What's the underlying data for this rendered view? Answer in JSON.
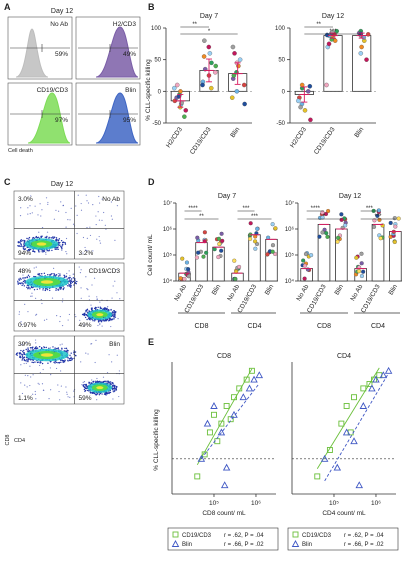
{
  "colors": {
    "panel_bg": "#ffffff",
    "violet": "#7b5ea7",
    "blue": "#3f66c4",
    "green": "#7ddc56",
    "grey_hist": "#bdbdbd",
    "bar_edge": "#333333",
    "sig": "#222222",
    "dot_palette": [
      "#e6c229",
      "#6cb3e6",
      "#d64541",
      "#7b5ea7",
      "#2ca05a",
      "#f08a24",
      "#9ad0f5",
      "#c2185b",
      "#a0a0a0",
      "#1f4e9c",
      "#f2a7c0",
      "#4caf50",
      "#ffde59"
    ],
    "pink_mean": "#d81b60",
    "scatter_green": "#6abf3a",
    "scatter_blue": "#3f57c4"
  },
  "panels": {
    "a": {
      "label": "A",
      "title": "Day 12",
      "xlabel": "Cell death",
      "cells": [
        {
          "name": "No Ab",
          "pct": "59%",
          "color": "grey"
        },
        {
          "name": "H2/CD3",
          "pct": "49%",
          "color": "violet"
        },
        {
          "name": "CD19/CD3",
          "pct": "97%",
          "color": "green"
        },
        {
          "name": "Blin",
          "pct": "95%",
          "color": "blue"
        }
      ]
    },
    "b": {
      "label": "B",
      "ylabel": "% CLL-specific killing"
    },
    "c": {
      "label": "C",
      "title": "Day 12",
      "ylabel": "CD8",
      "xlabel": "CD4",
      "plots": [
        {
          "name": "No Ab",
          "tl": "3.0%",
          "bl": "94%",
          "br": "3.2%"
        },
        {
          "name": "CD19/CD3",
          "tl": "48%",
          "bl": "0.97%",
          "br": "49%"
        },
        {
          "name": "Blin",
          "tl": "39%",
          "bl": "1.1%",
          "br": "59%"
        }
      ]
    },
    "d": {
      "label": "D",
      "ylabel": "Cell count/ mL",
      "group_labels": [
        "CD8",
        "CD4",
        "CD8",
        "CD4"
      ]
    },
    "e": {
      "label": "E",
      "ylabel": "% CLL-specific killing",
      "legend": [
        {
          "name": "CD19/CD3",
          "stat": "r = .62, P = .04"
        },
        {
          "name": "Blin",
          "stat": "r = .66, P = .02"
        }
      ]
    }
  },
  "chart_data": [
    {
      "type": "bar",
      "panel": "B1",
      "title": "Day 7",
      "categories": [
        "H2/CD3",
        "CD19/CD3",
        "Blin"
      ],
      "values": [
        -15,
        33,
        28
      ],
      "errors": [
        10,
        18,
        17
      ],
      "ylim": [
        -50,
        100
      ],
      "yticks": [
        -50,
        0,
        50,
        100
      ],
      "points": [
        [
          -25,
          -20,
          -15,
          -10,
          -5,
          0,
          5,
          -30,
          -18,
          -8,
          10,
          -40
        ],
        [
          5,
          15,
          25,
          35,
          45,
          55,
          60,
          70,
          80,
          10,
          30,
          40
        ],
        [
          -10,
          0,
          10,
          20,
          30,
          40,
          50,
          60,
          70,
          -20,
          45,
          25
        ]
      ],
      "significance": [
        {
          "pair": [
            0,
            1
          ],
          "label": "**"
        },
        {
          "pair": [
            0,
            2
          ],
          "label": "*"
        }
      ]
    },
    {
      "type": "bar",
      "panel": "B2",
      "title": "Day 12",
      "categories": [
        "H2/CD3",
        "CD19/CD3",
        "Blin"
      ],
      "values": [
        -5,
        88,
        88
      ],
      "errors": [
        12,
        4,
        4
      ],
      "ylim": [
        -50,
        100
      ],
      "yticks": [
        -50,
        0,
        50,
        100
      ],
      "points": [
        [
          -30,
          -20,
          -10,
          0,
          5,
          10,
          -15,
          -45,
          -25,
          8
        ],
        [
          85,
          88,
          90,
          92,
          95,
          80,
          70,
          75,
          93,
          89,
          10,
          82
        ],
        [
          80,
          85,
          90,
          92,
          95,
          70,
          60,
          50,
          88,
          91
        ]
      ],
      "significance": [
        {
          "pair": [
            0,
            1
          ],
          "label": "**"
        },
        {
          "pair": [
            0,
            2
          ],
          "label": "***"
        }
      ]
    },
    {
      "type": "bar",
      "panel": "D1",
      "title": "Day 7",
      "log": true,
      "categories": [
        "No Ab",
        "CD19/CD3",
        "Blin",
        "No Ab",
        "CD19/CD3",
        "Blin"
      ],
      "values": [
        20000,
        300000,
        200000,
        20000,
        600000,
        400000
      ],
      "ylim": [
        10000,
        10000000
      ],
      "ytick_labels": [
        "10⁴",
        "10⁵",
        "10⁶",
        "10⁷"
      ],
      "significance": [
        {
          "pair": [
            0,
            1
          ],
          "label": "****"
        },
        {
          "pair": [
            0,
            2
          ],
          "label": "**"
        },
        {
          "pair": [
            3,
            4
          ],
          "label": "***"
        },
        {
          "pair": [
            3,
            5
          ],
          "label": "***"
        }
      ]
    },
    {
      "type": "bar",
      "panel": "D2",
      "title": "Day 12",
      "log": true,
      "categories": [
        "No Ab",
        "CD19/CD3",
        "Blin",
        "No Ab",
        "CD19/CD3",
        "Blin"
      ],
      "values": [
        30000,
        1500000,
        1000000,
        30000,
        1500000,
        800000
      ],
      "ylim": [
        10000,
        10000000
      ],
      "ytick_labels": [
        "10⁴",
        "10⁵",
        "10⁶",
        "10⁷"
      ],
      "significance": [
        {
          "pair": [
            0,
            1
          ],
          "label": "****"
        },
        {
          "pair": [
            0,
            2
          ],
          "label": "*"
        },
        {
          "pair": [
            3,
            4
          ],
          "label": "***"
        },
        {
          "pair": [
            3,
            5
          ],
          "label": "***"
        }
      ]
    },
    {
      "type": "scatter",
      "panel": "E1",
      "title": "CD8",
      "xlabel": "CD8 count/ mL",
      "log_x": true,
      "xlim": [
        10000,
        3000000
      ],
      "xtick_labels": [
        "10⁵",
        "10⁶"
      ],
      "ylim": [
        -40,
        110
      ],
      "series": [
        {
          "name": "CD19/CD3",
          "x": [
            40000,
            60000,
            80000,
            100000,
            150000,
            200000,
            300000,
            400000,
            600000,
            800000,
            120000,
            250000
          ],
          "y": [
            -20,
            5,
            30,
            50,
            40,
            60,
            70,
            80,
            90,
            100,
            20,
            45
          ]
        },
        {
          "name": "Blin",
          "x": [
            50000,
            70000,
            100000,
            150000,
            200000,
            300000,
            500000,
            700000,
            900000,
            1200000,
            180000
          ],
          "y": [
            0,
            40,
            60,
            30,
            -10,
            50,
            70,
            80,
            90,
            95,
            -30
          ]
        }
      ]
    },
    {
      "type": "scatter",
      "panel": "E2",
      "title": "CD4",
      "xlabel": "CD4 count/ mL",
      "log_x": true,
      "xlim": [
        10000,
        3000000
      ],
      "xtick_labels": [
        "10⁵",
        "10⁶"
      ],
      "ylim": [
        -40,
        110
      ],
      "series": [
        {
          "name": "CD19/CD3",
          "x": [
            40000,
            80000,
            150000,
            200000,
            300000,
            500000,
            700000,
            900000,
            1200000,
            250000
          ],
          "y": [
            -20,
            10,
            40,
            60,
            70,
            80,
            85,
            90,
            95,
            30
          ]
        },
        {
          "name": "Blin",
          "x": [
            60000,
            120000,
            200000,
            300000,
            500000,
            800000,
            1000000,
            1500000,
            2000000,
            400000
          ],
          "y": [
            0,
            -10,
            30,
            20,
            60,
            80,
            90,
            95,
            100,
            -30
          ]
        }
      ]
    }
  ]
}
